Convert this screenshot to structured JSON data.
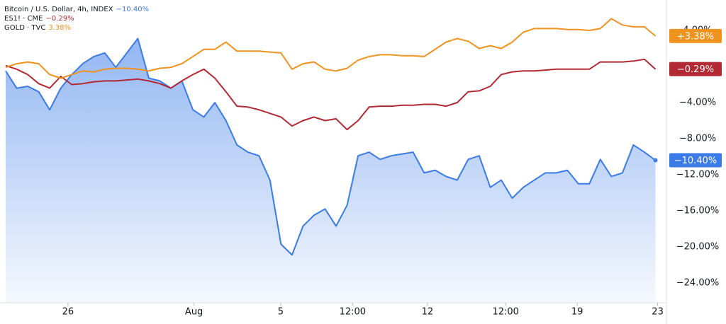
{
  "chart_data": {
    "type": "line",
    "xlim": [
      0,
      60
    ],
    "ylim": [
      -26.2,
      7.37
    ],
    "xticks": [
      {
        "value": 5.66,
        "label": "26"
      },
      {
        "value": 17.1,
        "label": "Aug"
      },
      {
        "value": 24.97,
        "label": "5"
      },
      {
        "value": 31.5,
        "label": "12:00"
      },
      {
        "value": 38.3,
        "label": "12"
      },
      {
        "value": 45.4,
        "label": "12:00"
      },
      {
        "value": 51.9,
        "label": "19"
      },
      {
        "value": 59.2,
        "label": "23"
      }
    ],
    "yticks": [
      {
        "value": 4,
        "label": "4.00%"
      },
      {
        "value": -4,
        "label": "−4.00%"
      },
      {
        "value": -8,
        "label": "−8.00%"
      },
      {
        "value": -12,
        "label": "−12.00%"
      },
      {
        "value": -16,
        "label": "−16.00%"
      },
      {
        "value": -20,
        "label": "−20.00%"
      },
      {
        "value": -24,
        "label": "−24.00%"
      }
    ],
    "grid": false,
    "series": [
      {
        "name": "Bitcoin / U.S. Dollar, 4h, INDEX",
        "color": "#3a7be8",
        "area": true,
        "legend_label": "−10.40%",
        "badge_label": "−10.40%",
        "values": [
          -0.5,
          -2.4,
          -2.2,
          -2.8,
          -4.8,
          -2.4,
          -0.9,
          0.3,
          1.1,
          1.5,
          -0.1,
          1.5,
          3.1,
          -1.3,
          -1.6,
          -2.4,
          -1.6,
          -4.8,
          -5.6,
          -4.0,
          -6.0,
          -8.7,
          -9.5,
          -9.9,
          -12.6,
          -19.7,
          -20.9,
          -17.7,
          -16.5,
          -15.8,
          -17.7,
          -15.4,
          -9.9,
          -9.5,
          -10.3,
          -9.9,
          -9.7,
          -9.5,
          -11.8,
          -11.5,
          -12.2,
          -12.6,
          -10.3,
          -9.9,
          -13.4,
          -12.6,
          -14.6,
          -13.4,
          -12.6,
          -11.8,
          -11.8,
          -11.5,
          -13.0,
          -13.0,
          -10.3,
          -12.2,
          -11.8,
          -8.7,
          -9.5,
          -10.4
        ]
      },
      {
        "name": "ES1! · CME",
        "color": "#b22833",
        "legend_label": "−0.29%",
        "badge_label": "−0.29%",
        "values": [
          0.1,
          -0.3,
          -0.9,
          -1.9,
          -2.4,
          -1.1,
          -2.0,
          -1.9,
          -1.7,
          -1.6,
          -1.6,
          -1.5,
          -1.4,
          -1.6,
          -1.9,
          -2.4,
          -1.6,
          -0.9,
          -0.3,
          -1.3,
          -2.8,
          -4.4,
          -4.5,
          -4.8,
          -5.2,
          -5.6,
          -6.6,
          -6.0,
          -5.6,
          -6.0,
          -5.8,
          -7.0,
          -6.0,
          -4.5,
          -4.4,
          -4.4,
          -4.3,
          -4.3,
          -4.2,
          -4.2,
          -4.4,
          -4.0,
          -2.8,
          -2.7,
          -2.2,
          -0.9,
          -0.6,
          -0.5,
          -0.5,
          -0.4,
          -0.3,
          -0.3,
          -0.3,
          -0.3,
          0.5,
          0.5,
          0.5,
          0.6,
          0.8,
          -0.29
        ]
      },
      {
        "name": "GOLD · TVC",
        "color": "#f0921e",
        "legend_label": "3.38%",
        "badge_label": "+3.38%",
        "values": [
          -0.1,
          0.3,
          0.5,
          0.3,
          -0.9,
          -1.3,
          -0.9,
          -0.5,
          -0.6,
          -0.3,
          -0.2,
          -0.2,
          -0.3,
          -0.5,
          -0.2,
          -0.1,
          0.3,
          1.1,
          1.9,
          1.9,
          2.7,
          1.7,
          1.7,
          1.7,
          1.6,
          1.5,
          -0.3,
          0.3,
          0.5,
          -0.3,
          -0.5,
          -0.2,
          0.7,
          1.1,
          1.3,
          1.3,
          1.2,
          1.2,
          1.1,
          1.9,
          2.7,
          3.1,
          2.8,
          2.0,
          2.3,
          2.0,
          2.7,
          3.8,
          4.2,
          4.2,
          4.2,
          4.1,
          4.1,
          4.0,
          4.2,
          5.3,
          4.6,
          4.4,
          4.4,
          3.38
        ]
      }
    ]
  }
}
